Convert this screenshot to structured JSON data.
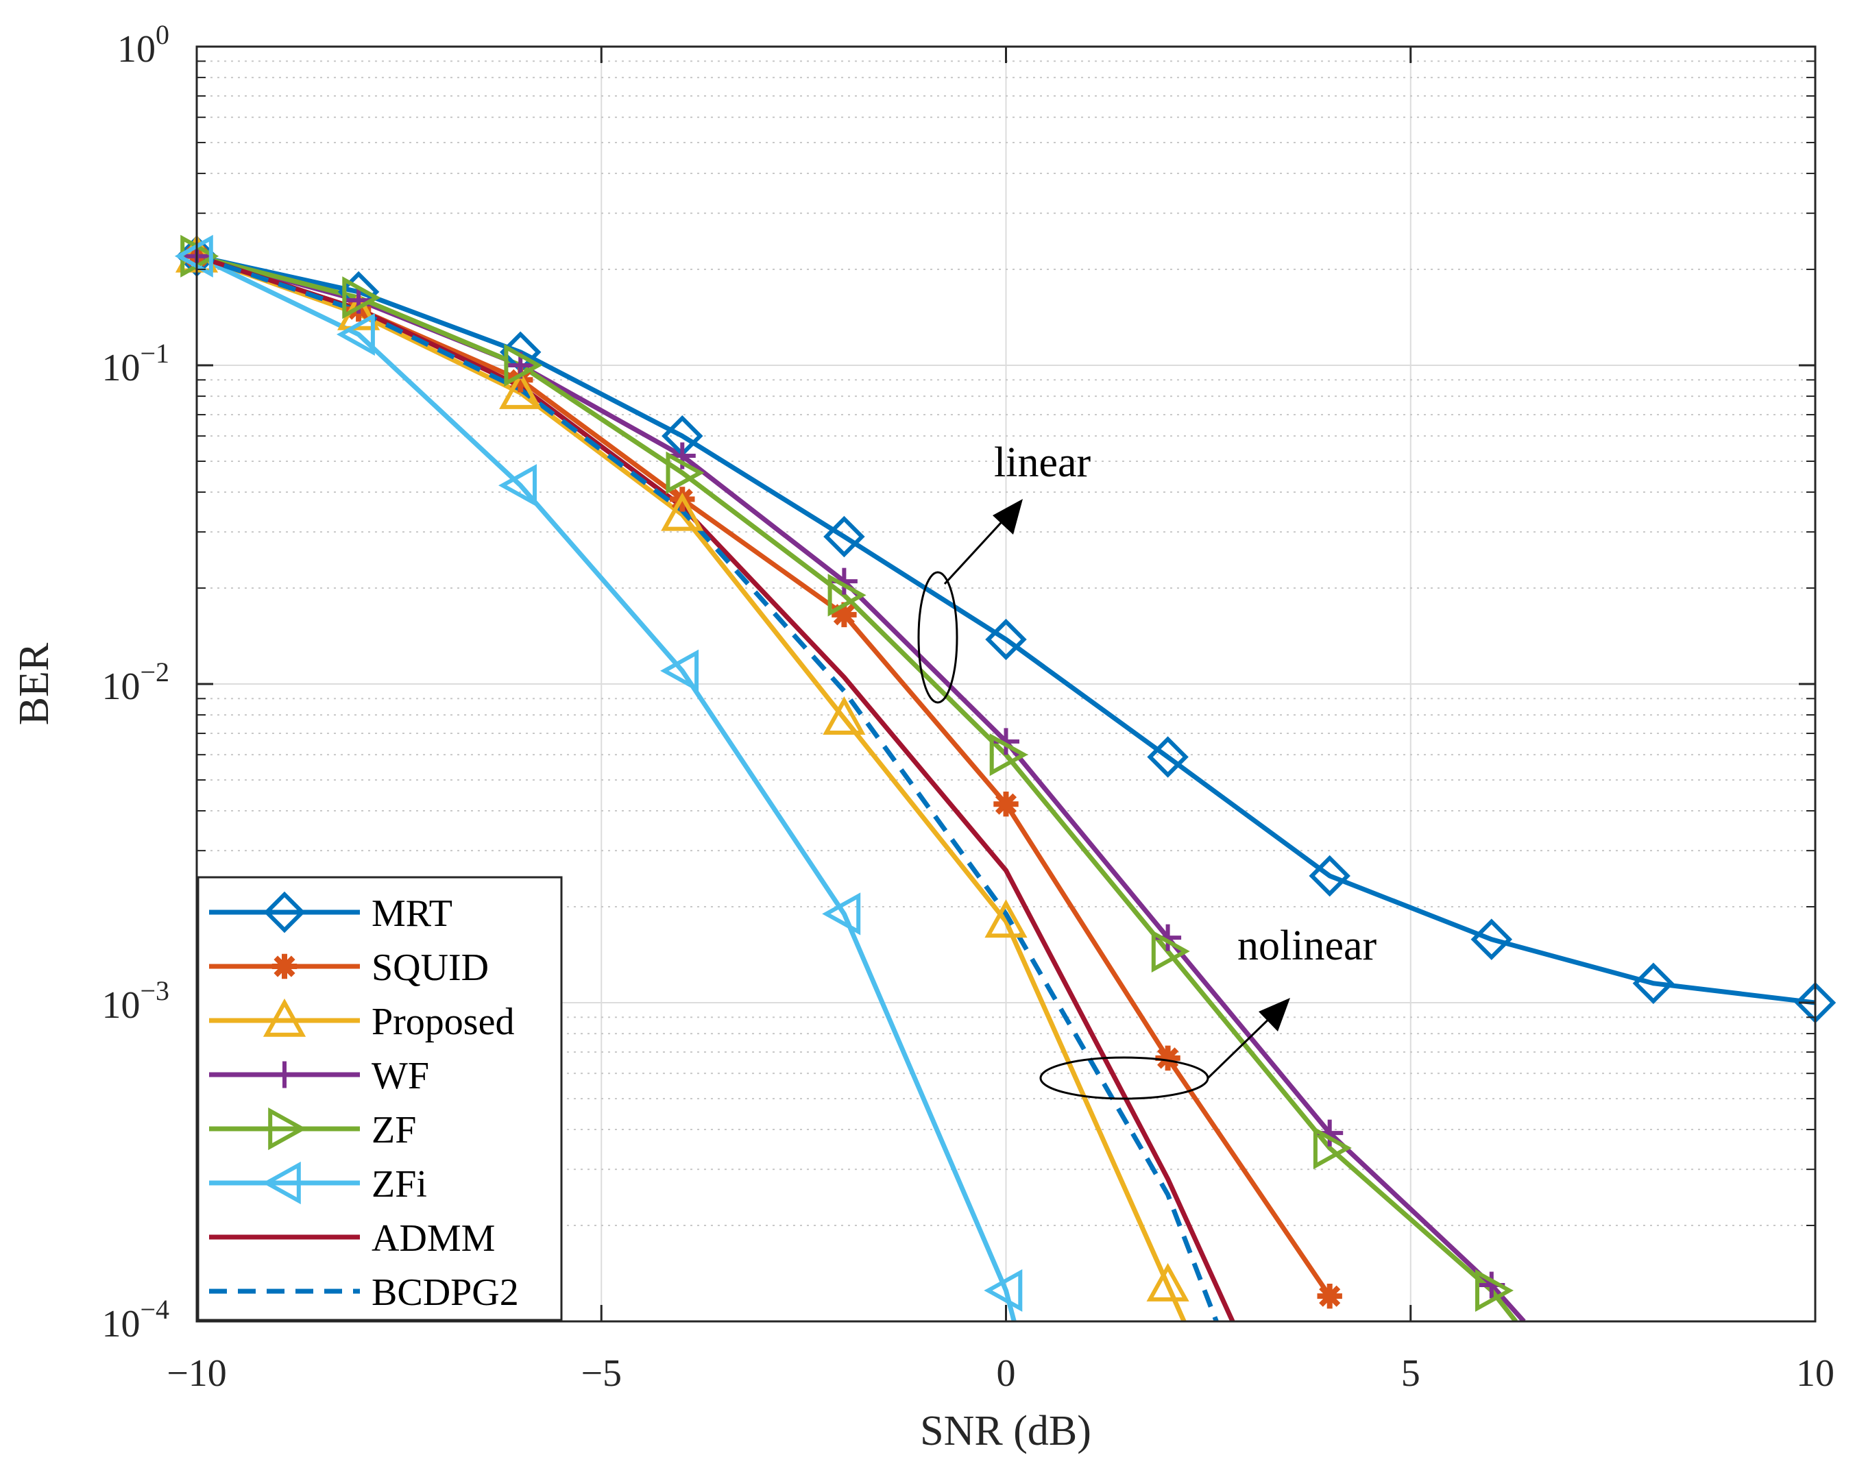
{
  "chart_data": {
    "type": "line",
    "title": "",
    "xlabel": "SNR (dB)",
    "ylabel": "BER",
    "xscale": "linear",
    "yscale": "log",
    "xlim": [
      -10,
      10
    ],
    "ylim": [
      0.0001,
      1
    ],
    "grid": true,
    "xticks": [
      -10,
      -5,
      0,
      5,
      10
    ],
    "xtick_labels": [
      "−10",
      "−5",
      "0",
      "5",
      "10"
    ],
    "yticks": [
      0.0001,
      0.001,
      0.01,
      0.1,
      1
    ],
    "ytick_labels": [
      {
        "base": "10",
        "exp": "−4"
      },
      {
        "base": "10",
        "exp": "−3"
      },
      {
        "base": "10",
        "exp": "−2"
      },
      {
        "base": "10",
        "exp": "−1"
      },
      {
        "base": "10",
        "exp": "0"
      }
    ],
    "legend_position": "bottom-left",
    "series": [
      {
        "name": "MRT",
        "color": "#0072BD",
        "marker": "diamond",
        "dash": "solid",
        "x": [
          -10,
          -8,
          -6,
          -4,
          -2,
          0,
          2,
          4,
          6,
          8,
          10
        ],
        "y": [
          0.22,
          0.17,
          0.11,
          0.06,
          0.029,
          0.0138,
          0.0059,
          0.0025,
          0.00158,
          0.00115,
          0.001
        ]
      },
      {
        "name": "SQUID",
        "color": "#D95319",
        "marker": "asterisk",
        "dash": "solid",
        "x": [
          -10,
          -8,
          -6,
          -4,
          -2,
          0,
          2,
          4
        ],
        "y": [
          0.22,
          0.15,
          0.09,
          0.038,
          0.0165,
          0.0042,
          0.00067,
          0.00012
        ]
      },
      {
        "name": "Proposed",
        "color": "#EDB120",
        "marker": "triangle-up",
        "dash": "solid",
        "x": [
          -10,
          -8,
          -6,
          -4,
          -2,
          0,
          2,
          2.2
        ],
        "y": [
          0.22,
          0.145,
          0.082,
          0.034,
          0.0078,
          0.0018,
          0.00013,
          0.0001
        ]
      },
      {
        "name": "WF",
        "color": "#7E2F8E",
        "marker": "plus",
        "dash": "solid",
        "x": [
          -10,
          -8,
          -6,
          -4,
          -2,
          0,
          2,
          4,
          6,
          6.4
        ],
        "y": [
          0.22,
          0.16,
          0.1,
          0.052,
          0.021,
          0.0066,
          0.0016,
          0.00039,
          0.00013,
          0.0001
        ]
      },
      {
        "name": "ZF",
        "color": "#77AC30",
        "marker": "triangle-right",
        "dash": "solid",
        "x": [
          -10,
          -8,
          -6,
          -4,
          -2,
          0,
          2,
          4,
          6,
          6.3
        ],
        "y": [
          0.22,
          0.163,
          0.1,
          0.046,
          0.019,
          0.006,
          0.00145,
          0.00035,
          0.000125,
          0.0001
        ]
      },
      {
        "name": "ZFi",
        "color": "#4DBEEE",
        "marker": "triangle-left",
        "dash": "solid",
        "x": [
          -10,
          -8,
          -6,
          -4,
          -2,
          0,
          0.1
        ],
        "y": [
          0.22,
          0.125,
          0.042,
          0.011,
          0.0019,
          0.000125,
          0.0001
        ]
      },
      {
        "name": "ADMM",
        "color": "#A2142F",
        "marker": "none",
        "dash": "solid",
        "x": [
          -10,
          -8,
          -6,
          -4,
          -2,
          0,
          2,
          2.8
        ],
        "y": [
          0.22,
          0.15,
          0.086,
          0.036,
          0.0105,
          0.0026,
          0.00028,
          0.0001
        ]
      },
      {
        "name": "BCDPG2",
        "color": "#0072BD",
        "marker": "none",
        "dash": "dashed",
        "x": [
          -10,
          -8,
          -6,
          -4,
          -2,
          0,
          2,
          2.6
        ],
        "y": [
          0.22,
          0.148,
          0.084,
          0.035,
          0.0095,
          0.0019,
          0.00025,
          0.0001
        ]
      }
    ],
    "annotations": [
      {
        "text": "linear",
        "x": 0.5,
        "y": 0.046
      },
      {
        "text": "nolinear",
        "x": 3.8,
        "y": 0.0015
      }
    ]
  }
}
